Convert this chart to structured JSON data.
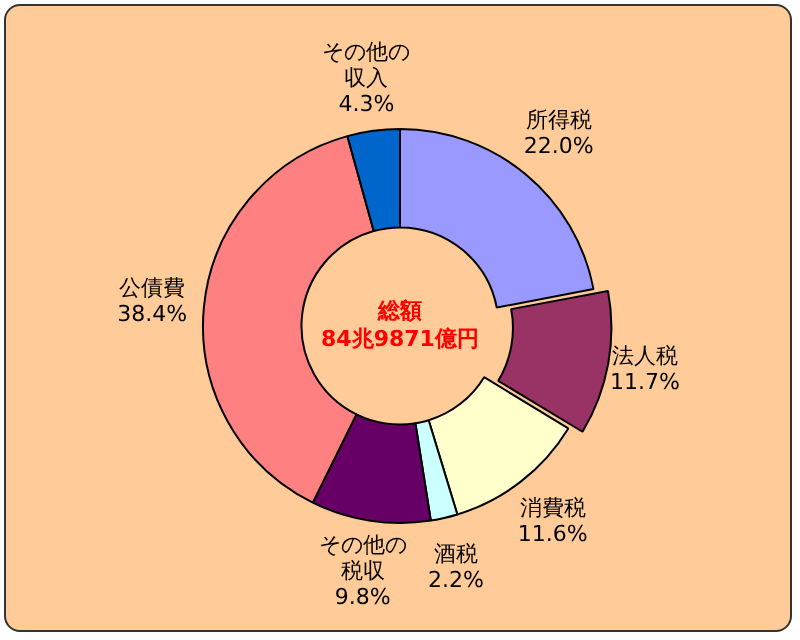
{
  "chart_data": {
    "type": "donut",
    "categories": [
      "所得税",
      "法人税",
      "消費税",
      "酒税",
      "その他の税収",
      "公債費",
      "その他の収入"
    ],
    "values": [
      22.0,
      11.7,
      11.6,
      2.2,
      9.8,
      38.4,
      4.3
    ],
    "value_labels": [
      "22.0%",
      "11.7%",
      "11.6%",
      "2.2%",
      "9.8%",
      "38.4%",
      "4.3%"
    ],
    "colors": [
      "#9999ff",
      "#993366",
      "#ffffcc",
      "#ccffff",
      "#660066",
      "#ff8080",
      "#0066cc"
    ],
    "annotations": [
      "総額",
      "84兆9871億円"
    ],
    "legend": false
  }
}
